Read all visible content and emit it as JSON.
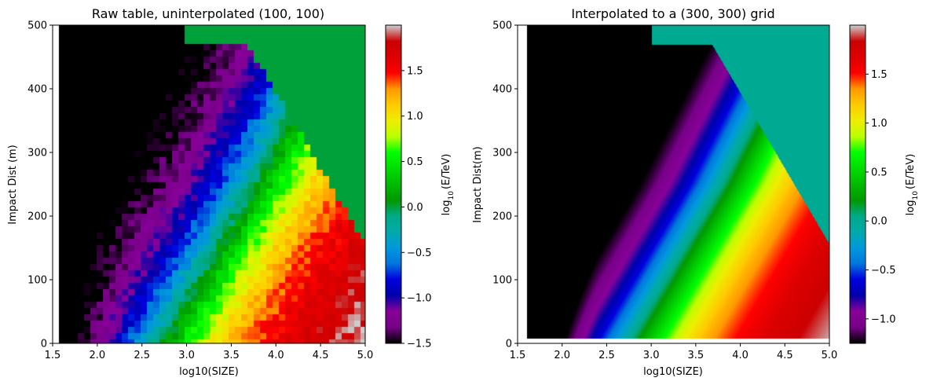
{
  "chart_data": [
    {
      "type": "heatmap",
      "title": "Raw table, uninterpolated (100, 100)",
      "xlabel": "log10(SIZE)",
      "ylabel": "Impact Dist (m)",
      "xlim": [
        1.5,
        5.0
      ],
      "ylim": [
        0,
        500
      ],
      "xticks": [
        "1.5",
        "2.0",
        "2.5",
        "3.0",
        "3.5",
        "4.0",
        "4.5",
        "5.0"
      ],
      "yticks": [
        "0",
        "100",
        "200",
        "300",
        "400",
        "500"
      ],
      "grid": false,
      "colorbar": {
        "label": "log10(E/TeV)",
        "label_main": "log",
        "label_sub": "10",
        "label_rest": "(E/TeV)",
        "range": [
          -1.5,
          2.0
        ],
        "ticks": [
          "−1.5",
          "−1.0",
          "−0.5",
          "0.0",
          "0.5",
          "1.0",
          "1.5"
        ],
        "tick_values": [
          -1.5,
          -1.0,
          -0.5,
          0.0,
          0.5,
          1.0,
          1.5
        ],
        "colormap": "nipy_spectral"
      },
      "data_extent_x": [
        1.6,
        5.0
      ],
      "data_extent_y": [
        0,
        500
      ],
      "fill_value": 0.0,
      "blocky": true
    },
    {
      "type": "heatmap",
      "title": "Interpolated to a (300, 300) grid",
      "xlabel": "log10(SIZE)",
      "ylabel": "Impact Dist(m)",
      "xlim": [
        1.5,
        5.0
      ],
      "ylim": [
        0,
        500
      ],
      "xticks": [
        "1.5",
        "2.0",
        "2.5",
        "3.0",
        "3.5",
        "4.0",
        "4.5",
        "5.0"
      ],
      "yticks": [
        "0",
        "100",
        "200",
        "300",
        "400",
        "500"
      ],
      "grid": false,
      "colorbar": {
        "label": "log10(E/TeV)",
        "label_main": "log",
        "label_sub": "10",
        "label_rest": "(E/TeV)",
        "range": [
          -1.25,
          2.0
        ],
        "ticks": [
          "−1.0",
          "−0.5",
          "0.0",
          "0.5",
          "1.0",
          "1.5"
        ],
        "tick_values": [
          -1.0,
          -0.5,
          0.0,
          0.5,
          1.0,
          1.5
        ],
        "colormap": "nipy_spectral"
      },
      "data_extent_x": [
        1.6,
        5.0
      ],
      "data_extent_y": [
        8,
        500
      ],
      "fill_value": 0.0,
      "blocky": false
    }
  ]
}
